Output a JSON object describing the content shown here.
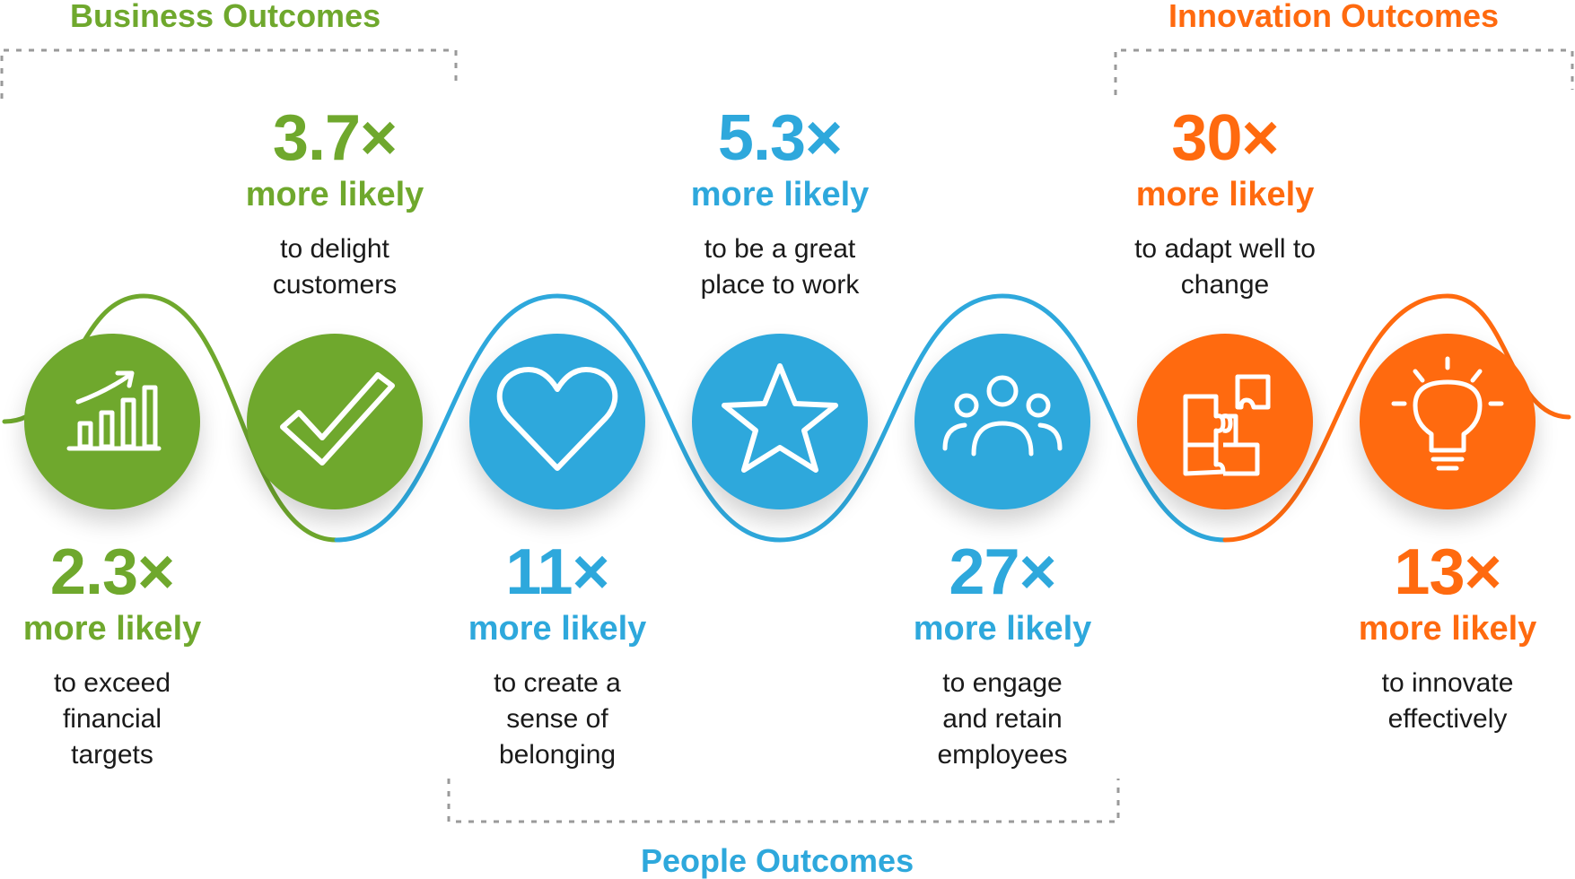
{
  "colors": {
    "business": "#6fa82d",
    "people": "#2ea8dc",
    "innovation": "#ff6a0f"
  },
  "groups": {
    "business": "Business Outcomes",
    "innovation": "Innovation Outcomes",
    "people": "People Outcomes"
  },
  "items": [
    {
      "multiplier": "2.3×",
      "likely": "more likely",
      "desc": [
        "to exceed",
        "financial",
        "targets"
      ],
      "icon": "growth-chart-icon",
      "group": "business"
    },
    {
      "multiplier": "3.7×",
      "likely": "more likely",
      "desc": [
        "to delight",
        "customers"
      ],
      "icon": "checkmark-icon",
      "group": "business"
    },
    {
      "multiplier": "11×",
      "likely": "more likely",
      "desc": [
        "to create a",
        "sense of",
        "belonging"
      ],
      "icon": "heart-icon",
      "group": "people"
    },
    {
      "multiplier": "5.3×",
      "likely": "more likely",
      "desc": [
        "to be a great",
        "place to work"
      ],
      "icon": "star-icon",
      "group": "people"
    },
    {
      "multiplier": "27×",
      "likely": "more likely",
      "desc": [
        "to engage",
        "and retain",
        "employees"
      ],
      "icon": "people-icon",
      "group": "people"
    },
    {
      "multiplier": "30×",
      "likely": "more likely",
      "desc": [
        "to adapt well to",
        "change"
      ],
      "icon": "puzzle-icon",
      "group": "innovation"
    },
    {
      "multiplier": "13×",
      "likely": "more likely",
      "desc": [
        "to innovate",
        "effectively"
      ],
      "icon": "lightbulb-icon",
      "group": "innovation"
    }
  ]
}
